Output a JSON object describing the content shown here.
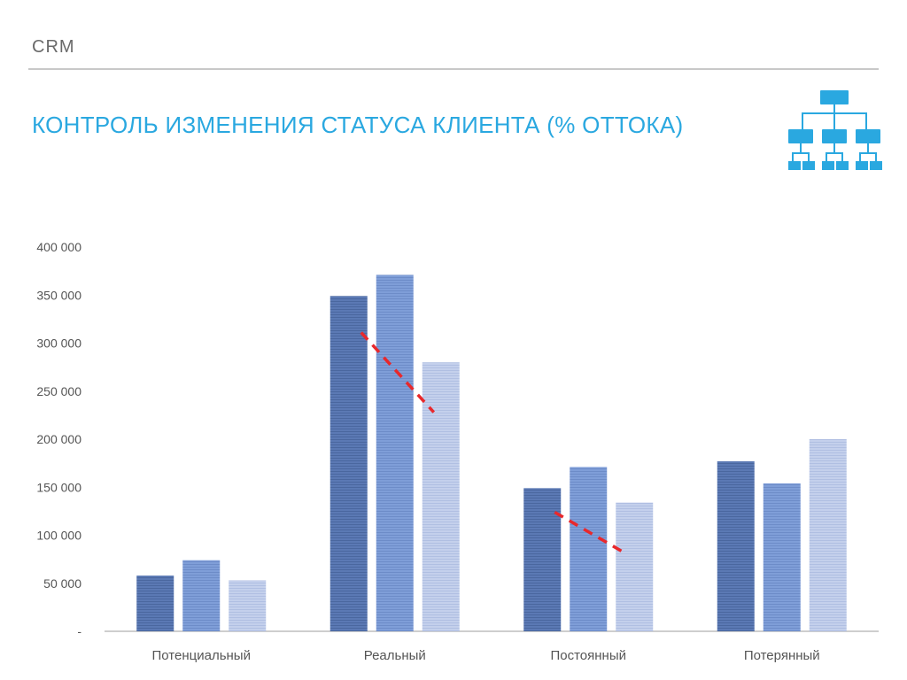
{
  "header": {
    "label": "CRM"
  },
  "slide": {
    "title": "КОНТРОЛЬ ИЗМЕНЕНИЯ СТАТУСА КЛИЕНТА (% ОТТОКА)"
  },
  "icons": {
    "hierarchy": "org-chart-icon"
  },
  "colors": {
    "accent": "#2aa8e0",
    "series": [
      "#5b79b4",
      "#7f9ed8",
      "#bcc9e8"
    ],
    "trend": "#e8282c"
  },
  "chart_data": {
    "type": "bar",
    "categories": [
      "Потенциальный",
      "Реальный",
      "Постоянный",
      "Потерянный"
    ],
    "series": [
      {
        "values": [
          58000,
          349000,
          149000,
          177000
        ]
      },
      {
        "values": [
          74000,
          371000,
          171000,
          154000
        ]
      },
      {
        "values": [
          53000,
          280000,
          134000,
          200000
        ]
      }
    ],
    "yticks": [
      "400 000",
      "350 000",
      "300 000",
      "250 000",
      "200 000",
      "150 000",
      "100 000",
      "50 000",
      "-"
    ],
    "ylim": [
      0,
      400000
    ],
    "grid": false,
    "legend": "none",
    "trend_lines": [
      {
        "category": "Реальный",
        "from": 311000,
        "to": 228000
      },
      {
        "category": "Постоянный",
        "from": 124000,
        "to": 80000
      }
    ]
  }
}
